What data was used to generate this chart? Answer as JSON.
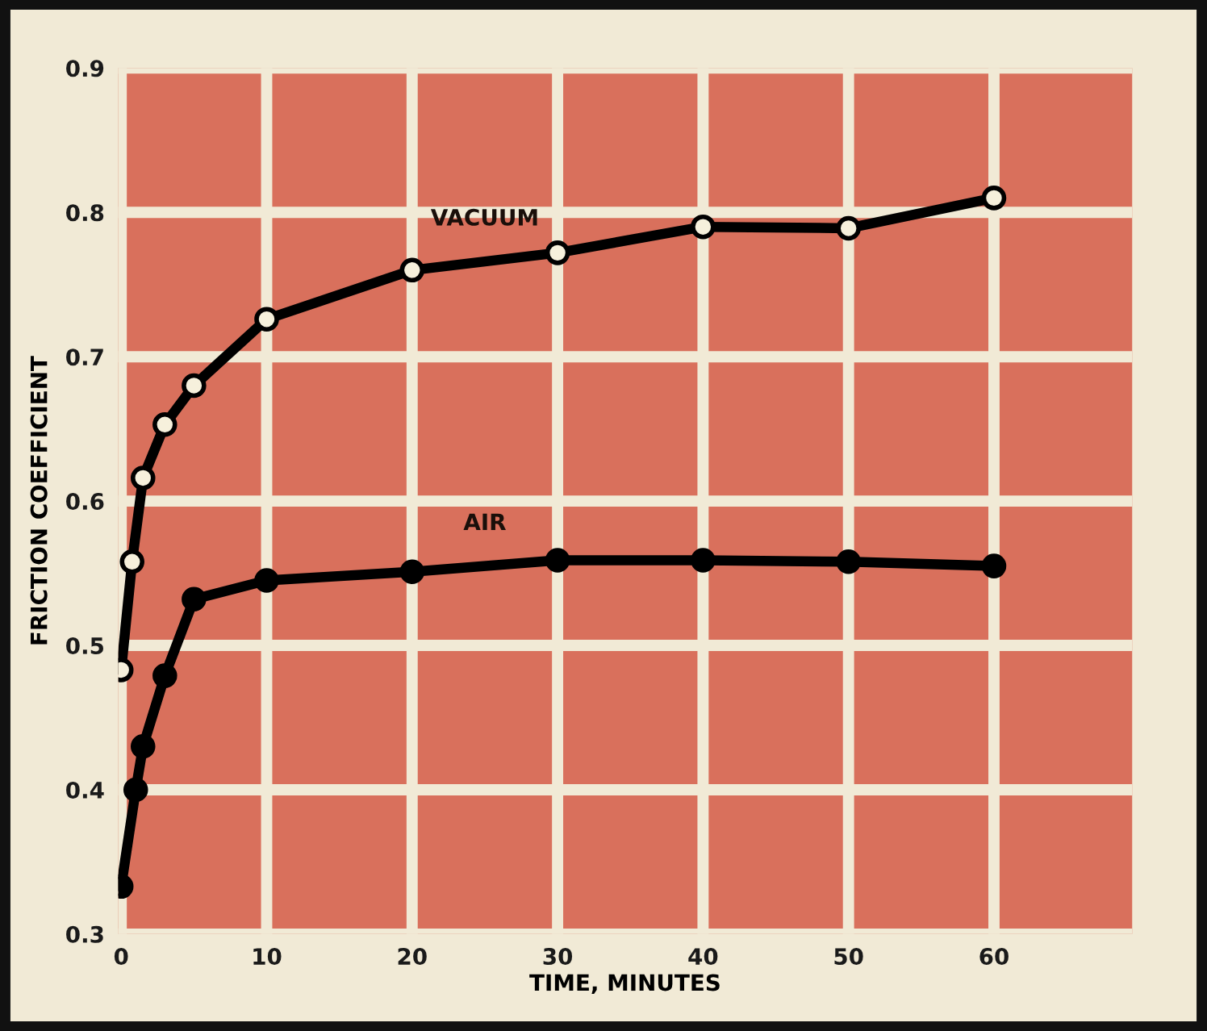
{
  "chart_data": {
    "type": "line",
    "xlabel": "TIME, MINUTES",
    "ylabel": "FRICTION COEFFICIENT",
    "xlim": [
      -0.2,
      69.5
    ],
    "ylim": [
      0.3,
      0.9
    ],
    "xticks": [
      0,
      10,
      20,
      30,
      40,
      50,
      60
    ],
    "yticks": [
      0.3,
      0.4,
      0.5,
      0.6,
      0.7,
      0.8,
      0.9
    ],
    "grid": true,
    "marker": "circle",
    "line_style": "solid",
    "series": [
      {
        "name": "VACUUM",
        "color": "#000000",
        "x": [
          0,
          0.75,
          1.5,
          3,
          5,
          10,
          20,
          30,
          40,
          50,
          60
        ],
        "values": [
          0.483,
          0.558,
          0.616,
          0.653,
          0.68,
          0.726,
          0.76,
          0.772,
          0.79,
          0.789,
          0.81
        ]
      },
      {
        "name": "AIR",
        "color": "#000000",
        "x": [
          0,
          1,
          1.5,
          3,
          5,
          10,
          20,
          30,
          40,
          50,
          60
        ],
        "values": [
          0.333,
          0.4,
          0.43,
          0.479,
          0.532,
          0.545,
          0.551,
          0.559,
          0.559,
          0.558,
          0.555
        ]
      }
    ]
  }
}
